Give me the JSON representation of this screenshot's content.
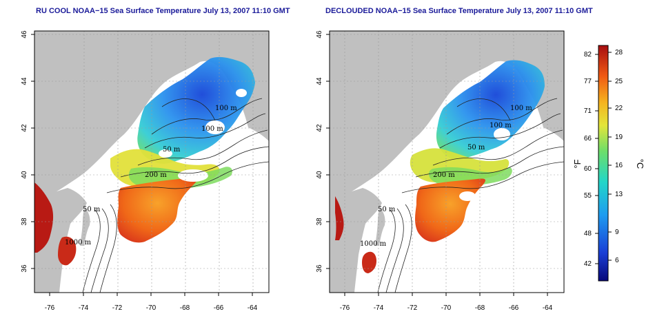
{
  "panels": [
    {
      "title": "RU COOL NOAA−15 Sea Surface Temperature July 13, 2007 11:10 GMT",
      "contour_labels": [
        "100 m",
        "100 m",
        "50 m",
        "200 m",
        "50 m",
        "1000 m"
      ]
    },
    {
      "title": "DECLOUDED NOAA−15 Sea Surface Temperature July 13, 2007 11:10 GMT",
      "contour_labels": [
        "100 m",
        "100 m",
        "50 m",
        "200 m",
        "50 m",
        "1000 m"
      ]
    }
  ],
  "axes": {
    "lon_ticks": [
      "-76",
      "-74",
      "-72",
      "-70",
      "-68",
      "-66",
      "-64"
    ],
    "lat_ticks": [
      "46",
      "44",
      "42",
      "40",
      "38",
      "36"
    ]
  },
  "colorbar": {
    "fahrenheit_ticks": [
      "82",
      "77",
      "71",
      "66",
      "60",
      "55",
      "48",
      "42"
    ],
    "celsius_ticks": [
      "28",
      "25",
      "22",
      "19",
      "16",
      "13",
      "9",
      "6"
    ],
    "fahrenheit_unit": "°F",
    "celsius_unit": "°C"
  },
  "colors": {
    "land": "#c0c0c0",
    "title": "#1a1a99",
    "no_data": "#ffffff"
  }
}
